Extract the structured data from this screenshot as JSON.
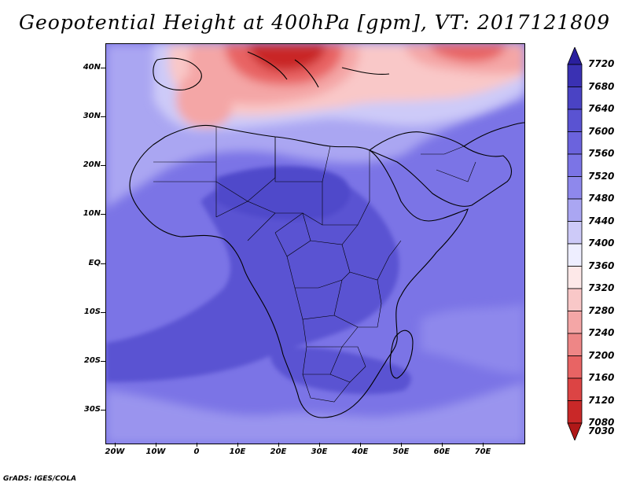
{
  "title": "Geopotential Height at 400hPa [gpm], VT: 2017121809",
  "credit": "GrADS: IGES/COLA",
  "y_axis": {
    "ticks": [
      {
        "label": "40N",
        "value": 40
      },
      {
        "label": "30N",
        "value": 30
      },
      {
        "label": "20N",
        "value": 20
      },
      {
        "label": "10N",
        "value": 10
      },
      {
        "label": "EQ",
        "value": 0
      },
      {
        "label": "10S",
        "value": -10
      },
      {
        "label": "20S",
        "value": -20
      },
      {
        "label": "30S",
        "value": -30
      }
    ],
    "range": [
      -37,
      45
    ]
  },
  "x_axis": {
    "ticks": [
      {
        "label": "20W",
        "value": -20
      },
      {
        "label": "10W",
        "value": -10
      },
      {
        "label": "0",
        "value": 0
      },
      {
        "label": "10E",
        "value": 10
      },
      {
        "label": "20E",
        "value": 20
      },
      {
        "label": "30E",
        "value": 30
      },
      {
        "label": "40E",
        "value": 40
      },
      {
        "label": "50E",
        "value": 50
      },
      {
        "label": "60E",
        "value": 60
      },
      {
        "label": "70E",
        "value": 70
      }
    ],
    "range": [
      -22,
      80
    ]
  },
  "colorbar": {
    "levels": [
      "7720",
      "7680",
      "7640",
      "7600",
      "7560",
      "7520",
      "7480",
      "7440",
      "7400",
      "7360",
      "7320",
      "7280",
      "7240",
      "7200",
      "7160",
      "7120",
      "7080",
      "7030"
    ],
    "colors": [
      "#2a1f9e",
      "#3a31b3",
      "#4a43c4",
      "#5a53d2",
      "#6b63dd",
      "#7b74e6",
      "#8e88ec",
      "#aaa6f2",
      "#cdcaf8",
      "#eef",
      "#fde8e8",
      "#f9c8c8",
      "#f4a6a6",
      "#ee8686",
      "#e86464",
      "#dc4444",
      "#c92828",
      "#b01818"
    ]
  }
}
